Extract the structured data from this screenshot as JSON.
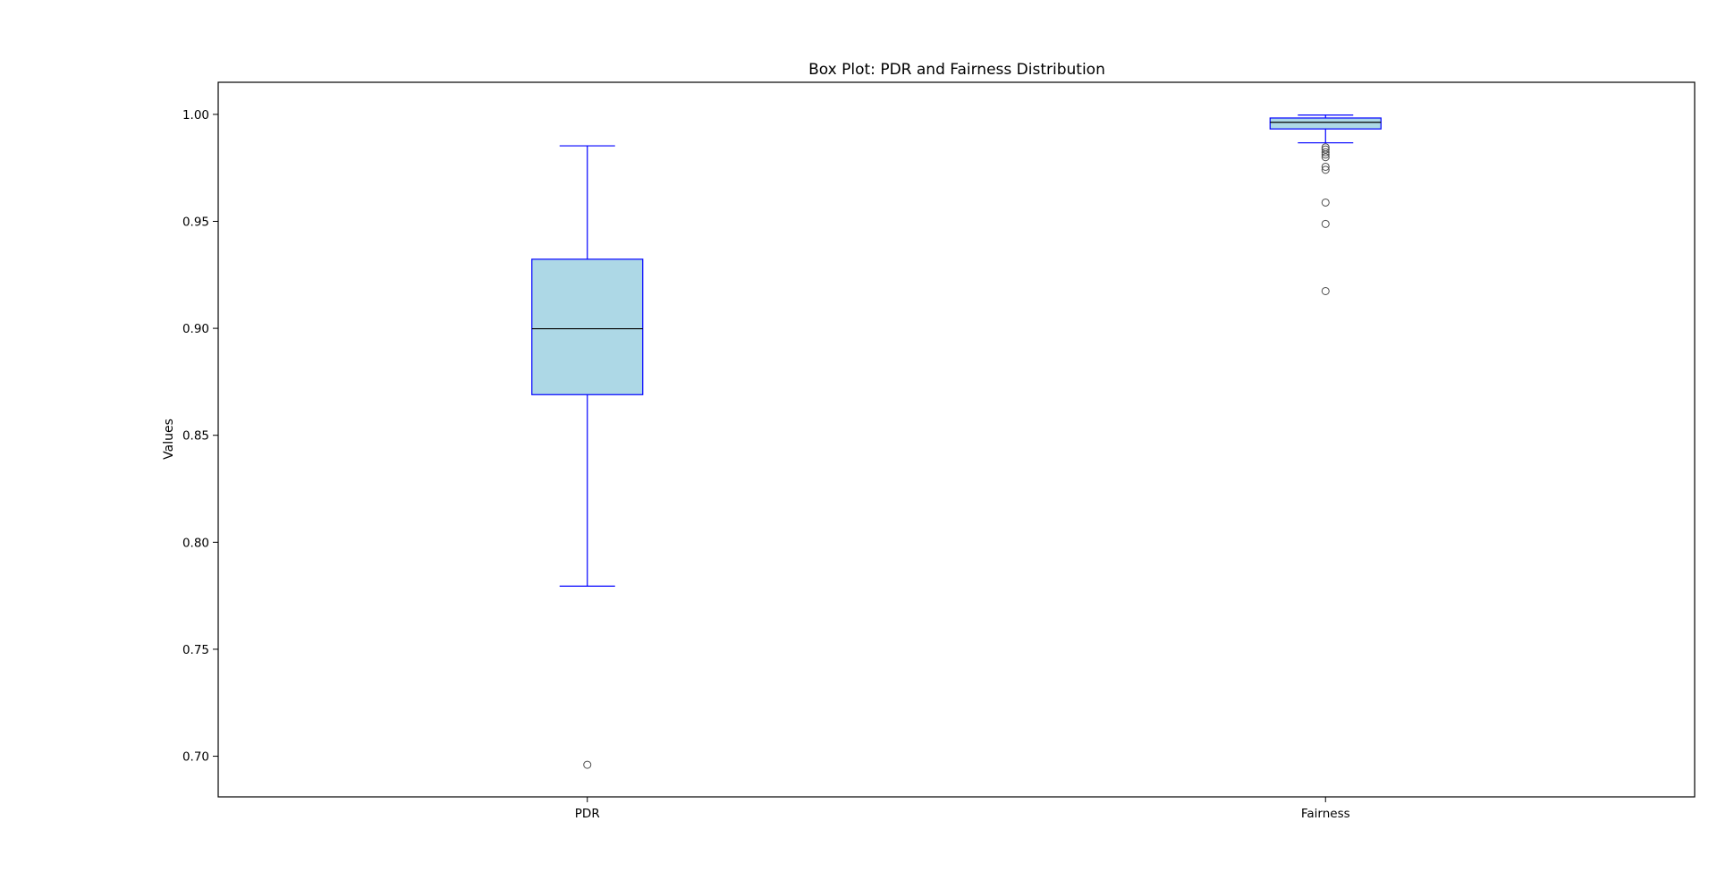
{
  "chart_data": {
    "type": "box",
    "title": "Box Plot: PDR and Fairness Distribution",
    "xlabel": "",
    "ylabel": "Values",
    "ylim": [
      0.681,
      1.015
    ],
    "yticks": [
      0.7,
      0.75,
      0.8,
      0.85,
      0.9,
      0.95,
      1.0
    ],
    "ytick_labels": [
      "0.70",
      "0.75",
      "0.80",
      "0.85",
      "0.90",
      "0.95",
      "1.00"
    ],
    "grid": false,
    "legend": "none",
    "categories": [
      "PDR",
      "Fairness"
    ],
    "boxes": [
      {
        "category": "PDR",
        "whisker_low": 0.7795,
        "q1": 0.869,
        "median": 0.8998,
        "q3": 0.9323,
        "whisker_high": 0.9853,
        "outliers": [
          0.696
        ]
      },
      {
        "category": "Fairness",
        "whisker_low": 0.9867,
        "q1": 0.9932,
        "median": 0.9963,
        "q3": 0.9983,
        "whisker_high": 0.9997,
        "outliers": [
          0.9846,
          0.9836,
          0.9823,
          0.9812,
          0.98,
          0.9755,
          0.9741,
          0.9588,
          0.9488,
          0.9174
        ]
      }
    ],
    "colors": {
      "box_fill": "#add8e6",
      "box_edge": "#0000ff",
      "median_line": "#000000",
      "outlier_edge": "#4d4d4d"
    }
  }
}
